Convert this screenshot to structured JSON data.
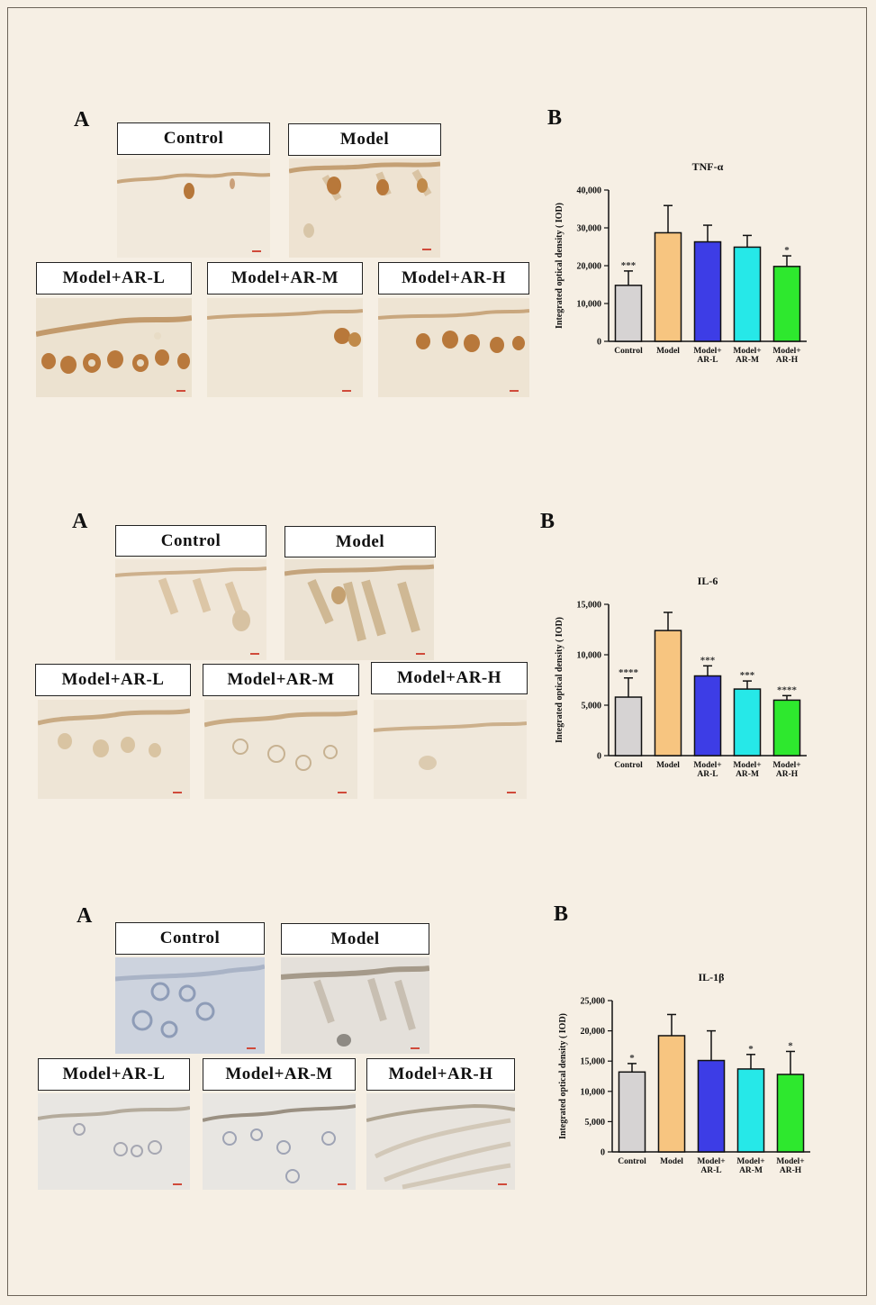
{
  "panels": [
    {
      "letter_a": "A",
      "letter_b": "B",
      "image_labels": [
        "Control",
        "Model",
        "Model+AR-L",
        "Model+AR-M",
        "Model+AR-H"
      ]
    },
    {
      "letter_a": "A",
      "letter_b": "B",
      "image_labels": [
        "Control",
        "Model",
        "Model+AR-L",
        "Model+AR-M",
        "Model+AR-H"
      ]
    },
    {
      "letter_a": "A",
      "letter_b": "B",
      "image_labels": [
        "Control",
        "Model",
        "Model+AR-L",
        "Model+AR-M",
        "Model+AR-H"
      ]
    }
  ],
  "chart_data": [
    {
      "type": "bar",
      "title": "TNF-α",
      "ylabel": "Integrated optical density ( IOD)",
      "xlabel": "",
      "categories": [
        [
          "Control"
        ],
        [
          "Model"
        ],
        [
          "Model+",
          "AR-L"
        ],
        [
          "Model+",
          "AR-M"
        ],
        [
          "Model+",
          "AR-H"
        ]
      ],
      "values": [
        14800,
        28700,
        26300,
        24900,
        19800
      ],
      "errors": [
        3800,
        7200,
        4400,
        3100,
        2800
      ],
      "significance": [
        "***",
        "",
        "",
        "",
        "*"
      ],
      "ylim": [
        0,
        40000
      ],
      "yticks": [
        0,
        10000,
        20000,
        30000,
        40000
      ],
      "ytick_labels": [
        "0",
        "10,000",
        "20,000",
        "30,000",
        "40,000"
      ],
      "colors": [
        "#d6d3d3",
        "#f7c580",
        "#3d3de6",
        "#26e8e8",
        "#2ee82e"
      ]
    },
    {
      "type": "bar",
      "title": "IL-6",
      "ylabel": "Integrated optical density ( IOD)",
      "xlabel": "",
      "categories": [
        [
          "Control"
        ],
        [
          "Model"
        ],
        [
          "Model+",
          "AR-L"
        ],
        [
          "Model+",
          "AR-M"
        ],
        [
          "Model+",
          "AR-H"
        ]
      ],
      "values": [
        5800,
        12400,
        7900,
        6600,
        5500
      ],
      "errors": [
        1900,
        1800,
        1000,
        800,
        450
      ],
      "significance": [
        "****",
        "",
        "***",
        "***",
        "****"
      ],
      "ylim": [
        0,
        15000
      ],
      "yticks": [
        0,
        5000,
        10000,
        15000
      ],
      "ytick_labels": [
        "0",
        "5,000",
        "10,000",
        "15,000"
      ],
      "colors": [
        "#d6d3d3",
        "#f7c580",
        "#3d3de6",
        "#26e8e8",
        "#2ee82e"
      ]
    },
    {
      "type": "bar",
      "title": "IL-1β",
      "ylabel": "Integrated optical density ( IOD)",
      "xlabel": "",
      "categories": [
        [
          "Control"
        ],
        [
          "Model"
        ],
        [
          "Model+",
          "AR-L"
        ],
        [
          "Model+",
          "AR-M"
        ],
        [
          "Model+",
          "AR-H"
        ]
      ],
      "values": [
        13200,
        19200,
        15100,
        13700,
        12800
      ],
      "errors": [
        1400,
        3500,
        4900,
        2400,
        3800
      ],
      "significance": [
        "*",
        "",
        "",
        "*",
        "*"
      ],
      "ylim": [
        0,
        25000
      ],
      "yticks": [
        0,
        5000,
        10000,
        15000,
        20000,
        25000
      ],
      "ytick_labels": [
        "0",
        "5,000",
        "10,000",
        "15,000",
        "20,000",
        "25,000"
      ],
      "colors": [
        "#d6d3d3",
        "#f7c580",
        "#3d3de6",
        "#26e8e8",
        "#2ee82e"
      ]
    }
  ]
}
